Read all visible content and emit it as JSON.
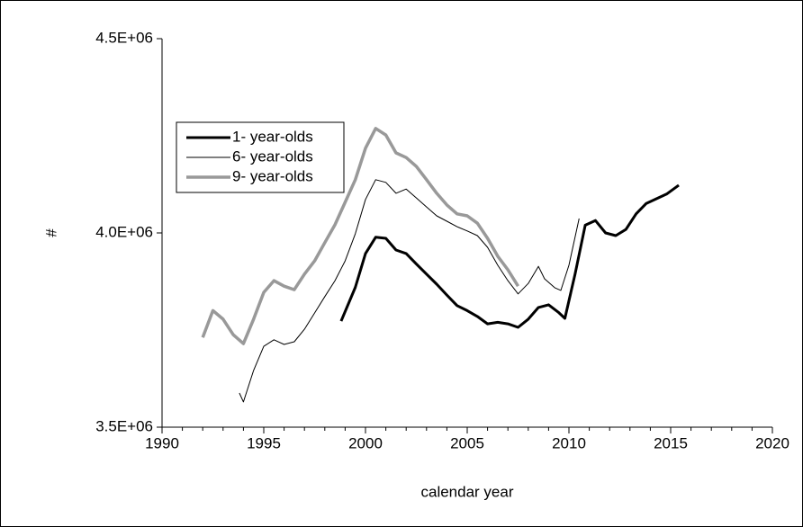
{
  "chart_data": {
    "type": "line",
    "x_label": "calendar year",
    "y_label": "#",
    "xlim": [
      1990,
      2020
    ],
    "xticks": [
      1990,
      1995,
      2000,
      2005,
      2010,
      2015,
      2020
    ],
    "xminorticks": [
      1991,
      1992,
      1993,
      1994,
      1996,
      1997,
      1998,
      1999,
      2001,
      2002,
      2003,
      2004,
      2006,
      2007,
      2008,
      2009,
      2011,
      2012,
      2013,
      2014,
      2016,
      2017,
      2018,
      2019
    ],
    "ylim": [
      3500000,
      4500000
    ],
    "yticks": [
      {
        "value": 3500000,
        "label": "3.5E+06"
      },
      {
        "value": 4000000,
        "label": "4.0E+06"
      },
      {
        "value": 4500000,
        "label": "4.5E+06"
      }
    ],
    "legend": "upper left",
    "series": [
      {
        "name": "1- year-olds",
        "color": "#000000",
        "x": [
          1998.8,
          1999.5,
          2000,
          2000.5,
          2001,
          2001.5,
          2002,
          2002.5,
          2003,
          2003.5,
          2004,
          2004.5,
          2005,
          2005.5,
          2006,
          2006.5,
          2007,
          2007.5,
          2008,
          2008.5,
          2009,
          2009.5,
          2009.8,
          2010.3,
          2010.8,
          2011.3,
          2011.8,
          2012.3,
          2012.8,
          2013.3,
          2013.8,
          2014.3,
          2014.8,
          2015.4
        ],
        "values": [
          3773000,
          3860000,
          3947000,
          3989000,
          3986000,
          3956000,
          3947000,
          3920000,
          3894000,
          3868000,
          3840000,
          3813000,
          3800000,
          3785000,
          3766000,
          3770000,
          3766000,
          3757000,
          3778000,
          3808000,
          3815000,
          3795000,
          3780000,
          3894000,
          4020000,
          4032000,
          4000000,
          3993000,
          4009000,
          4049000,
          4076000,
          4088000,
          4100000,
          4123000
        ]
      },
      {
        "name": "6- year-olds",
        "color": "#000000",
        "x": [
          1993.8,
          1994,
          1994.5,
          1995,
          1995.5,
          1996,
          1996.5,
          1997,
          1997.5,
          1998,
          1998.5,
          1999,
          1999.5,
          2000,
          2000.5,
          2001,
          2001.5,
          2002,
          2002.5,
          2003,
          2003.5,
          2004,
          2004.5,
          2005,
          2005.5,
          2006,
          2006.5,
          2007,
          2007.5,
          2008,
          2008.5,
          2008.8,
          2009.3,
          2009.6,
          2010,
          2010.5
        ],
        "values": [
          3588000,
          3565000,
          3646000,
          3708000,
          3725000,
          3713000,
          3720000,
          3752000,
          3794000,
          3836000,
          3877000,
          3928000,
          3998000,
          4086000,
          4137000,
          4130000,
          4102000,
          4113000,
          4090000,
          4067000,
          4044000,
          4030000,
          4016000,
          4005000,
          3993000,
          3963000,
          3917000,
          3877000,
          3843000,
          3870000,
          3914000,
          3882000,
          3859000,
          3852000,
          3917000,
          4037000
        ]
      },
      {
        "name": "9- year-olds",
        "color": "#999999",
        "x": [
          1992,
          1992.5,
          1993,
          1993.5,
          1994,
          1994.5,
          1995,
          1995.5,
          1996,
          1996.5,
          1997,
          1997.5,
          1998,
          1998.5,
          1999,
          1999.5,
          2000,
          2000.5,
          2001,
          2001.5,
          2002,
          2002.5,
          2003,
          2003.5,
          2004,
          2004.5,
          2005,
          2005.5,
          2006,
          2006.5,
          2007,
          2007.5
        ],
        "values": [
          3731000,
          3800000,
          3778000,
          3738000,
          3715000,
          3778000,
          3847000,
          3877000,
          3863000,
          3854000,
          3894000,
          3928000,
          3975000,
          4021000,
          4079000,
          4137000,
          4218000,
          4269000,
          4252000,
          4206000,
          4194000,
          4171000,
          4137000,
          4102000,
          4072000,
          4049000,
          4044000,
          4025000,
          3986000,
          3940000,
          3905000,
          3863000
        ]
      }
    ]
  }
}
